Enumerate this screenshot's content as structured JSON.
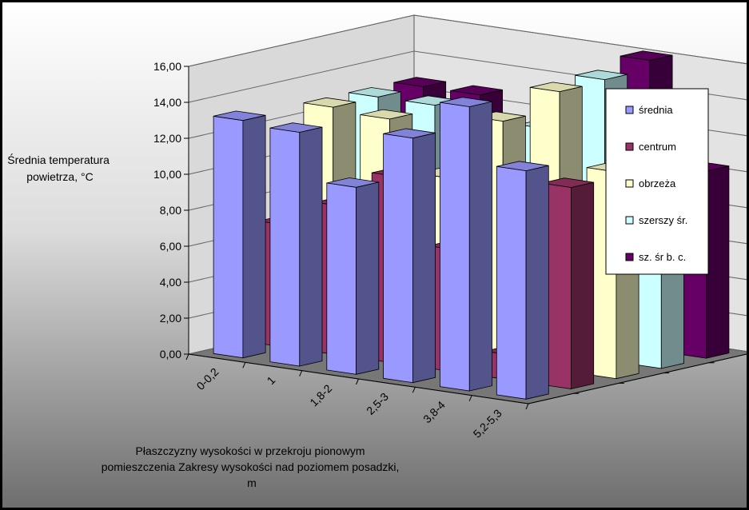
{
  "chart_data": {
    "type": "bar",
    "subtype": "3d-clustered-depth",
    "title": "",
    "ylabel_lines": [
      "Średnia temperatura",
      "powietrza, °C"
    ],
    "xlabel_lines": [
      "Płaszczyzny wysokości w przekroju pionowym",
      "pomieszczenia Zakresy wysokości nad poziomem posadzki,",
      "m"
    ],
    "ylim": [
      0,
      16
    ],
    "yticks": [
      "0,00",
      "2,00",
      "4,00",
      "6,00",
      "8,00",
      "10,00",
      "12,00",
      "14,00",
      "16,00"
    ],
    "categories": [
      "0-0,2",
      "1",
      "1,8-2",
      "2,5-3",
      "3,8-4",
      "5,2-5,3"
    ],
    "grid": true,
    "legend_position": "right",
    "series": [
      {
        "name": "średnia",
        "color": "#9999ff",
        "values": [
          13.2,
          13.0,
          10.4,
          13.6,
          15.8,
          12.7
        ]
      },
      {
        "name": "centrum",
        "color": "#993366",
        "values": [
          6.8,
          8.3,
          10.4,
          6.8,
          1.4,
          11.2
        ]
      },
      {
        "name": "obrzeża",
        "color": "#ffffcc",
        "values": [
          12.8,
          12.6,
          9.8,
          13.4,
          15.5,
          11.5
        ]
      },
      {
        "name": "szerszy śr.",
        "color": "#ccffff",
        "values": [
          12.8,
          12.8,
          10.0,
          12.4,
          15.6,
          10.6
        ]
      },
      {
        "name": "sz. śr b. c.",
        "color": "#660066",
        "values": [
          12.8,
          12.8,
          11.0,
          13.2,
          16.1,
          10.4
        ]
      }
    ]
  }
}
